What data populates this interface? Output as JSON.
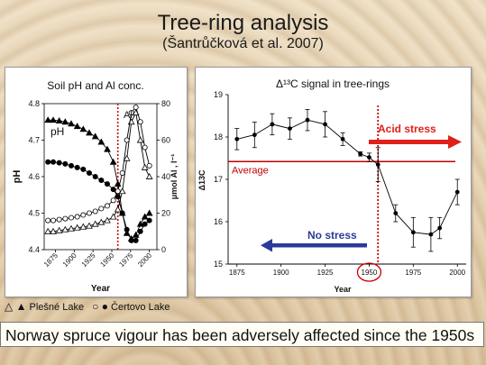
{
  "slide": {
    "title": "Tree-ring analysis",
    "citation": "(Šantrůčková et al. 2007)",
    "legend_text": {
      "plesne_symbols": "△ ▲",
      "plesne_label": "Plešné Lake",
      "certovo_symbols": "○ ●",
      "certovo_label": "Čertovo Lake"
    },
    "conclusion": "Norway spruce vigour has been adversely affected since the 1950s"
  },
  "colors": {
    "dotted_line": "#cc0000",
    "acid_stress_arrow": "#e0201a",
    "no_stress_arrow": "#2b3a9a",
    "average_line": "#c00000",
    "highlight_circle": "#d00000"
  },
  "chart_data": [
    {
      "type": "line",
      "title": "Soil pH and Al conc.",
      "xlabel": "Year",
      "ylabel_left": "pH",
      "ylabel_right": "μmol Al , l⁻¹",
      "xlim": [
        1860,
        2010
      ],
      "ylim_left": [
        4.4,
        4.8
      ],
      "ylim_right": [
        0,
        80
      ],
      "x_ticks": [
        "1875",
        "1900",
        "1925",
        "1950",
        "1975",
        "2000"
      ],
      "y_ticks_left": [
        "4.4",
        "4.5",
        "4.6",
        "4.7",
        "4.8"
      ],
      "y_ticks_right": [
        "0",
        "20",
        "40",
        "60",
        "80"
      ],
      "annotations": {
        "pH": "pH",
        "Al": "Al"
      },
      "vertical_marker_year": 1958,
      "series": [
        {
          "axis": "left",
          "marker": "filled-triangle",
          "x": [
            1865,
            1872,
            1880,
            1888,
            1896,
            1904,
            1912,
            1920,
            1928,
            1936,
            1944,
            1952,
            1958,
            1964,
            1970,
            1976,
            1982,
            1988,
            1994,
            2000
          ],
          "y": [
            4.755,
            4.755,
            4.753,
            4.75,
            4.745,
            4.738,
            4.73,
            4.72,
            4.71,
            4.695,
            4.675,
            4.64,
            4.58,
            4.5,
            4.445,
            4.43,
            4.44,
            4.47,
            4.49,
            4.5
          ]
        },
        {
          "axis": "left",
          "marker": "filled-circle",
          "x": [
            1865,
            1872,
            1880,
            1888,
            1896,
            1904,
            1912,
            1920,
            1928,
            1936,
            1944,
            1952,
            1958,
            1964,
            1970,
            1976,
            1982,
            1988,
            1994,
            2000
          ],
          "y": [
            4.64,
            4.64,
            4.638,
            4.635,
            4.63,
            4.625,
            4.62,
            4.61,
            4.6,
            4.59,
            4.58,
            4.565,
            4.545,
            4.5,
            4.455,
            4.425,
            4.425,
            4.45,
            4.47,
            4.48
          ]
        },
        {
          "axis": "right",
          "marker": "open-triangle",
          "x": [
            1865,
            1872,
            1880,
            1888,
            1896,
            1904,
            1912,
            1920,
            1928,
            1936,
            1944,
            1952,
            1958,
            1964,
            1970,
            1976,
            1982,
            1988,
            1994,
            2000
          ],
          "y": [
            10,
            10,
            10.5,
            11,
            11.5,
            12,
            12.5,
            13,
            14,
            15,
            16,
            18,
            22,
            32,
            50,
            70,
            75,
            60,
            45,
            40
          ]
        },
        {
          "axis": "right",
          "marker": "open-circle",
          "x": [
            1865,
            1872,
            1880,
            1888,
            1896,
            1904,
            1912,
            1920,
            1928,
            1936,
            1944,
            1952,
            1958,
            1964,
            1970,
            1976,
            1982,
            1988,
            1994,
            2000
          ],
          "y": [
            16,
            16,
            16.5,
            17,
            17.5,
            18,
            19,
            20,
            21,
            22.5,
            24,
            27,
            32,
            42,
            60,
            75,
            78,
            70,
            56,
            46
          ]
        }
      ]
    },
    {
      "type": "line",
      "title": "Δ¹³C signal in tree-rings",
      "xlabel": "Year",
      "ylabel": "Δ13C",
      "xlim": [
        1870,
        2005
      ],
      "ylim": [
        15,
        19
      ],
      "x_ticks": [
        "1875",
        "1900",
        "1925",
        "1950",
        "1975",
        "2000"
      ],
      "y_ticks": [
        "15",
        "16",
        "17",
        "18",
        "19"
      ],
      "average": {
        "value": 17.42,
        "label": "Average"
      },
      "vertical_marker_year": 1955,
      "highlighted_tick": "1950",
      "annotations": {
        "acid": "Acid stress",
        "none": "No stress"
      },
      "series": [
        {
          "name": "",
          "x": [
            1875,
            1885,
            1895,
            1905,
            1915,
            1925,
            1935,
            1945,
            1950,
            1955,
            1965,
            1975,
            1985,
            1990,
            2000
          ],
          "y": [
            17.95,
            18.05,
            18.3,
            18.2,
            18.4,
            18.3,
            17.95,
            17.6,
            17.52,
            17.35,
            16.2,
            15.75,
            15.7,
            15.85,
            16.7
          ],
          "err": [
            0.25,
            0.3,
            0.25,
            0.25,
            0.25,
            0.3,
            0.15,
            0.05,
            0.1,
            0.4,
            0.2,
            0.35,
            0.4,
            0.25,
            0.3
          ]
        }
      ]
    }
  ]
}
